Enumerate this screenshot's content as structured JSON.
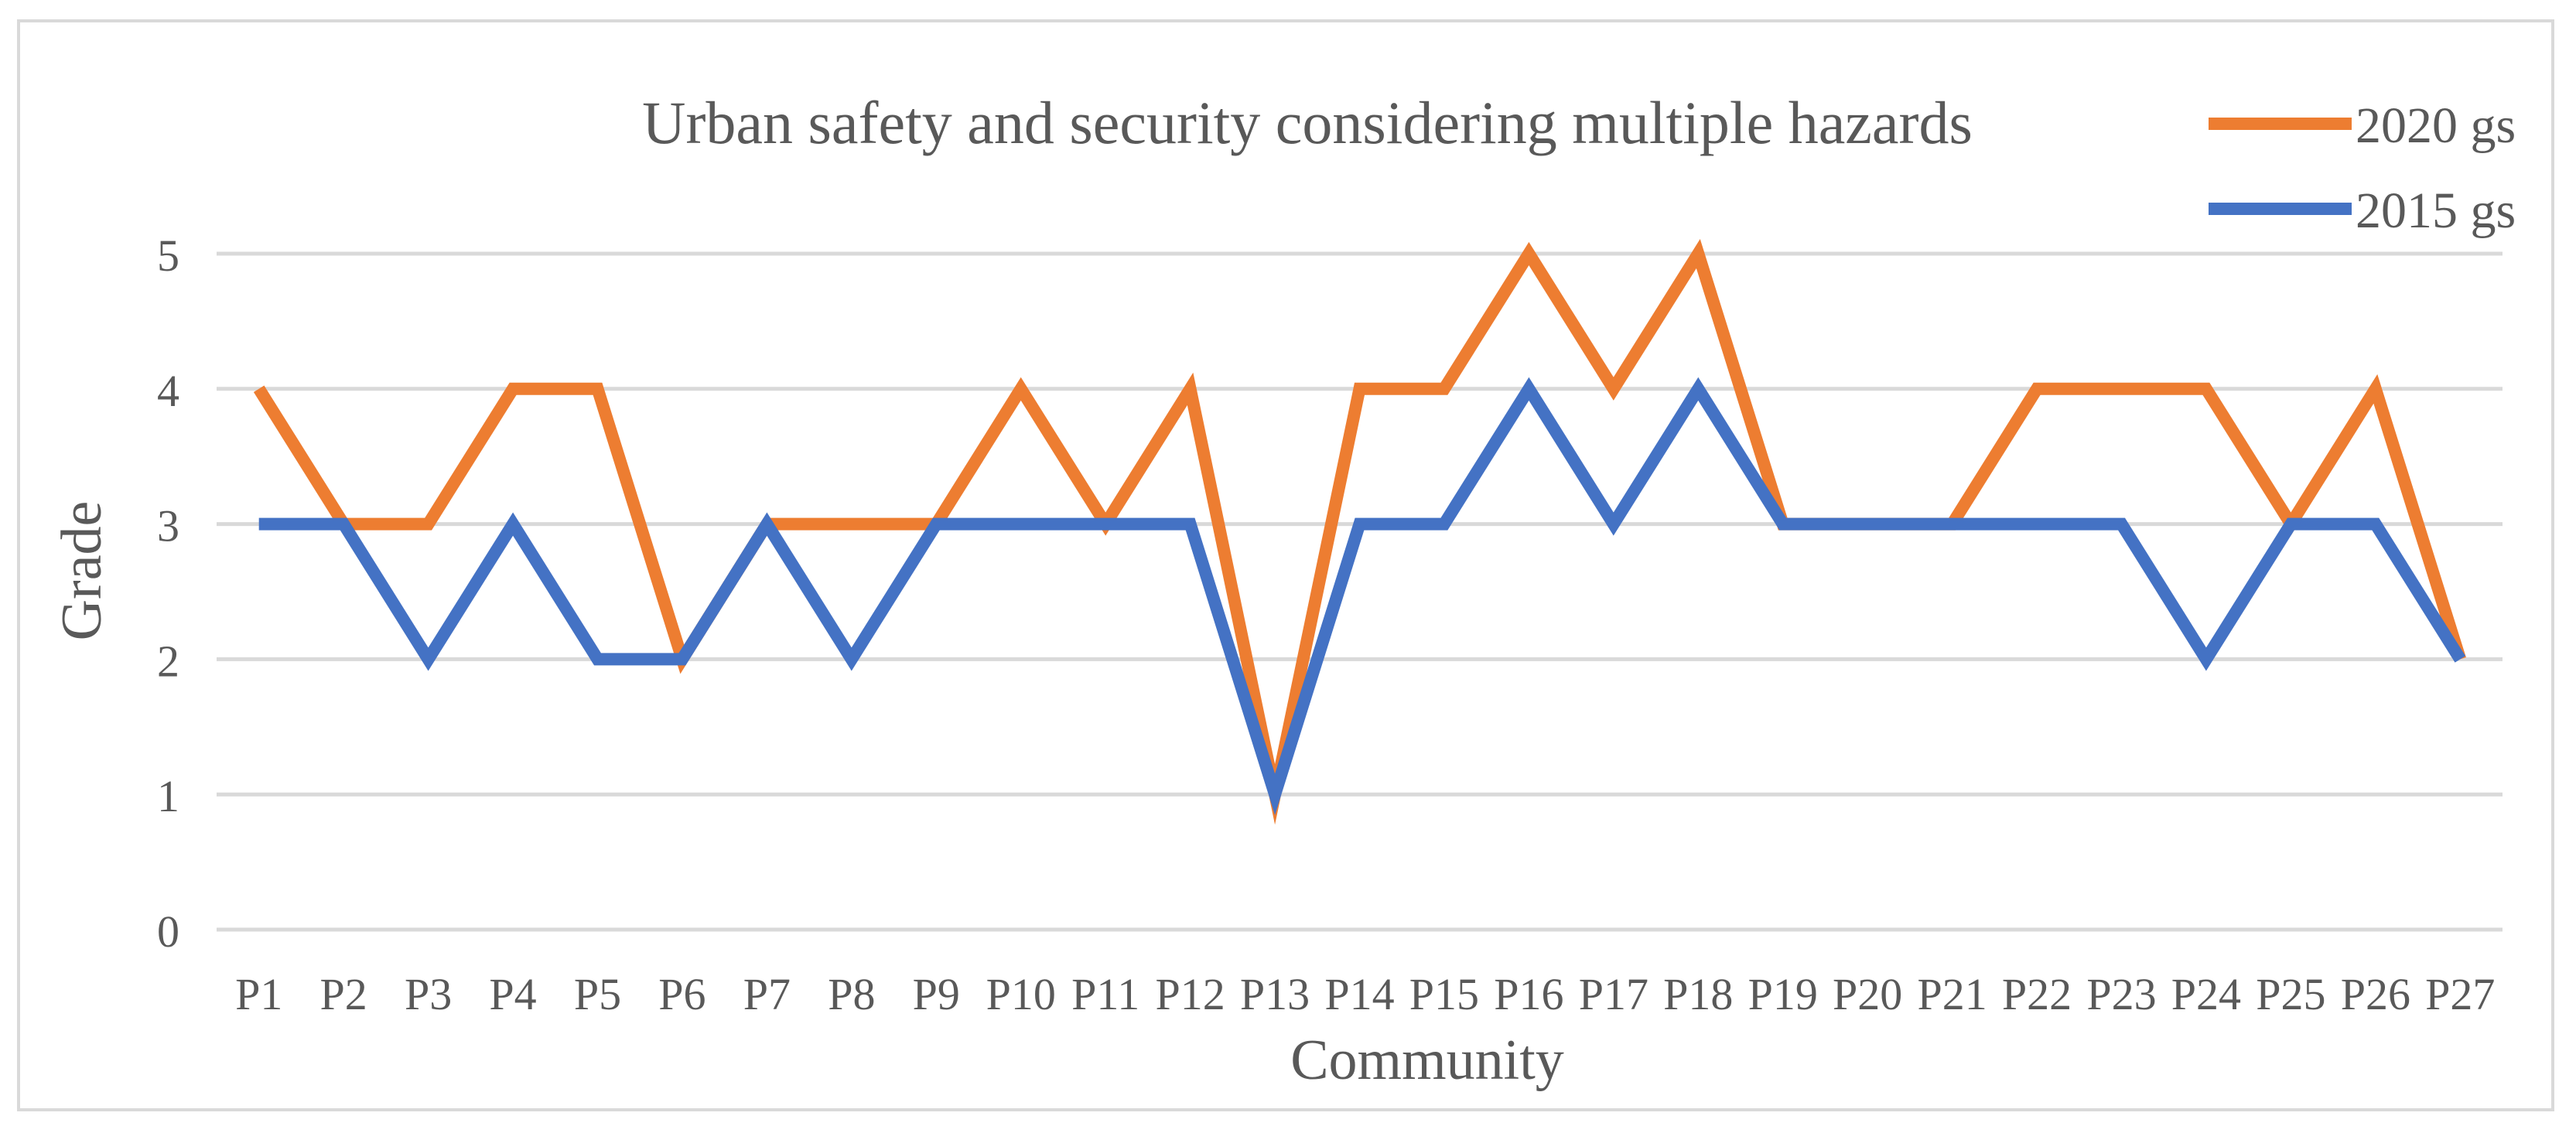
{
  "chart_data": {
    "type": "line",
    "title": "Urban safety and security considering multiple hazards",
    "xlabel": "Community",
    "ylabel": "Grade",
    "ylim": [
      0,
      5
    ],
    "yticks": [
      "0",
      "1",
      "2",
      "3",
      "4",
      "5"
    ],
    "grid": true,
    "legend_position": "top-right",
    "categories": [
      "P1",
      "P2",
      "P3",
      "P4",
      "P5",
      "P6",
      "P7",
      "P8",
      "P9",
      "P10",
      "P11",
      "P12",
      "P13",
      "P14",
      "P15",
      "P16",
      "P17",
      "P18",
      "P19",
      "P20",
      "P21",
      "P22",
      "P23",
      "P24",
      "P25",
      "P26",
      "P27"
    ],
    "series": [
      {
        "name": "2020 gs",
        "color": "#ED7D31",
        "values": [
          4,
          3,
          3,
          4,
          4,
          2,
          3,
          3,
          3,
          4,
          3,
          4,
          1,
          4,
          4,
          5,
          4,
          5,
          3,
          3,
          3,
          4,
          4,
          4,
          3,
          4,
          2
        ]
      },
      {
        "name": "2015 gs",
        "color": "#4472C4",
        "values": [
          3,
          3,
          2,
          3,
          2,
          2,
          3,
          2,
          3,
          3,
          3,
          3,
          1,
          3,
          3,
          4,
          3,
          4,
          3,
          3,
          3,
          3,
          3,
          2,
          3,
          3,
          2
        ]
      }
    ]
  },
  "colors": {
    "grid": "#D9D9D9",
    "text": "#595959"
  }
}
